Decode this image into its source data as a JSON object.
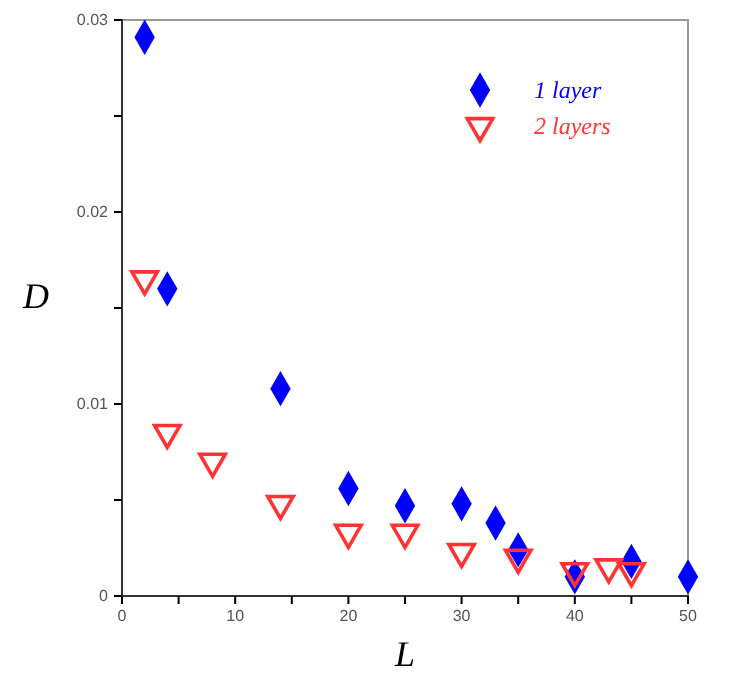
{
  "chart_data": {
    "type": "scatter",
    "xlabel": "L",
    "ylabel": "D",
    "xlim": [
      0,
      50
    ],
    "xticks": [
      0,
      {
        "value": 5,
        "label": null
      },
      10,
      {
        "value": 15,
        "label": null
      },
      20,
      {
        "value": 25,
        "label": null
      },
      30,
      {
        "value": 35,
        "label": null
      },
      40,
      {
        "value": 45,
        "label": null
      },
      50
    ],
    "ylim": [
      0,
      0.03
    ],
    "yticks": [
      0,
      {
        "value": 0.005,
        "label": null
      },
      0.01,
      {
        "value": 0.015,
        "label": null
      },
      0.02,
      {
        "value": 0.025,
        "label": null
      },
      0.03
    ],
    "legend": "top right",
    "grid": false,
    "series": [
      {
        "name": "1 layer",
        "color": "#0000ff",
        "marker": "diamond",
        "x": [
          2,
          4,
          14,
          20,
          25,
          30,
          33,
          35,
          40,
          45,
          50
        ],
        "values": [
          0.0291,
          0.016,
          0.0108,
          0.0056,
          0.0047,
          0.0048,
          0.0038,
          0.0024,
          0.001,
          0.0018,
          0.001
        ]
      },
      {
        "name": "2 layers",
        "color": "#ff3333",
        "marker": "triangle",
        "x": [
          2,
          4,
          8,
          14,
          20,
          25,
          30,
          35,
          40,
          43,
          45
        ],
        "values": [
          0.0165,
          0.0085,
          0.007,
          0.0048,
          0.0033,
          0.0033,
          0.0023,
          0.002,
          0.0013,
          0.0015,
          0.0013
        ]
      }
    ]
  }
}
